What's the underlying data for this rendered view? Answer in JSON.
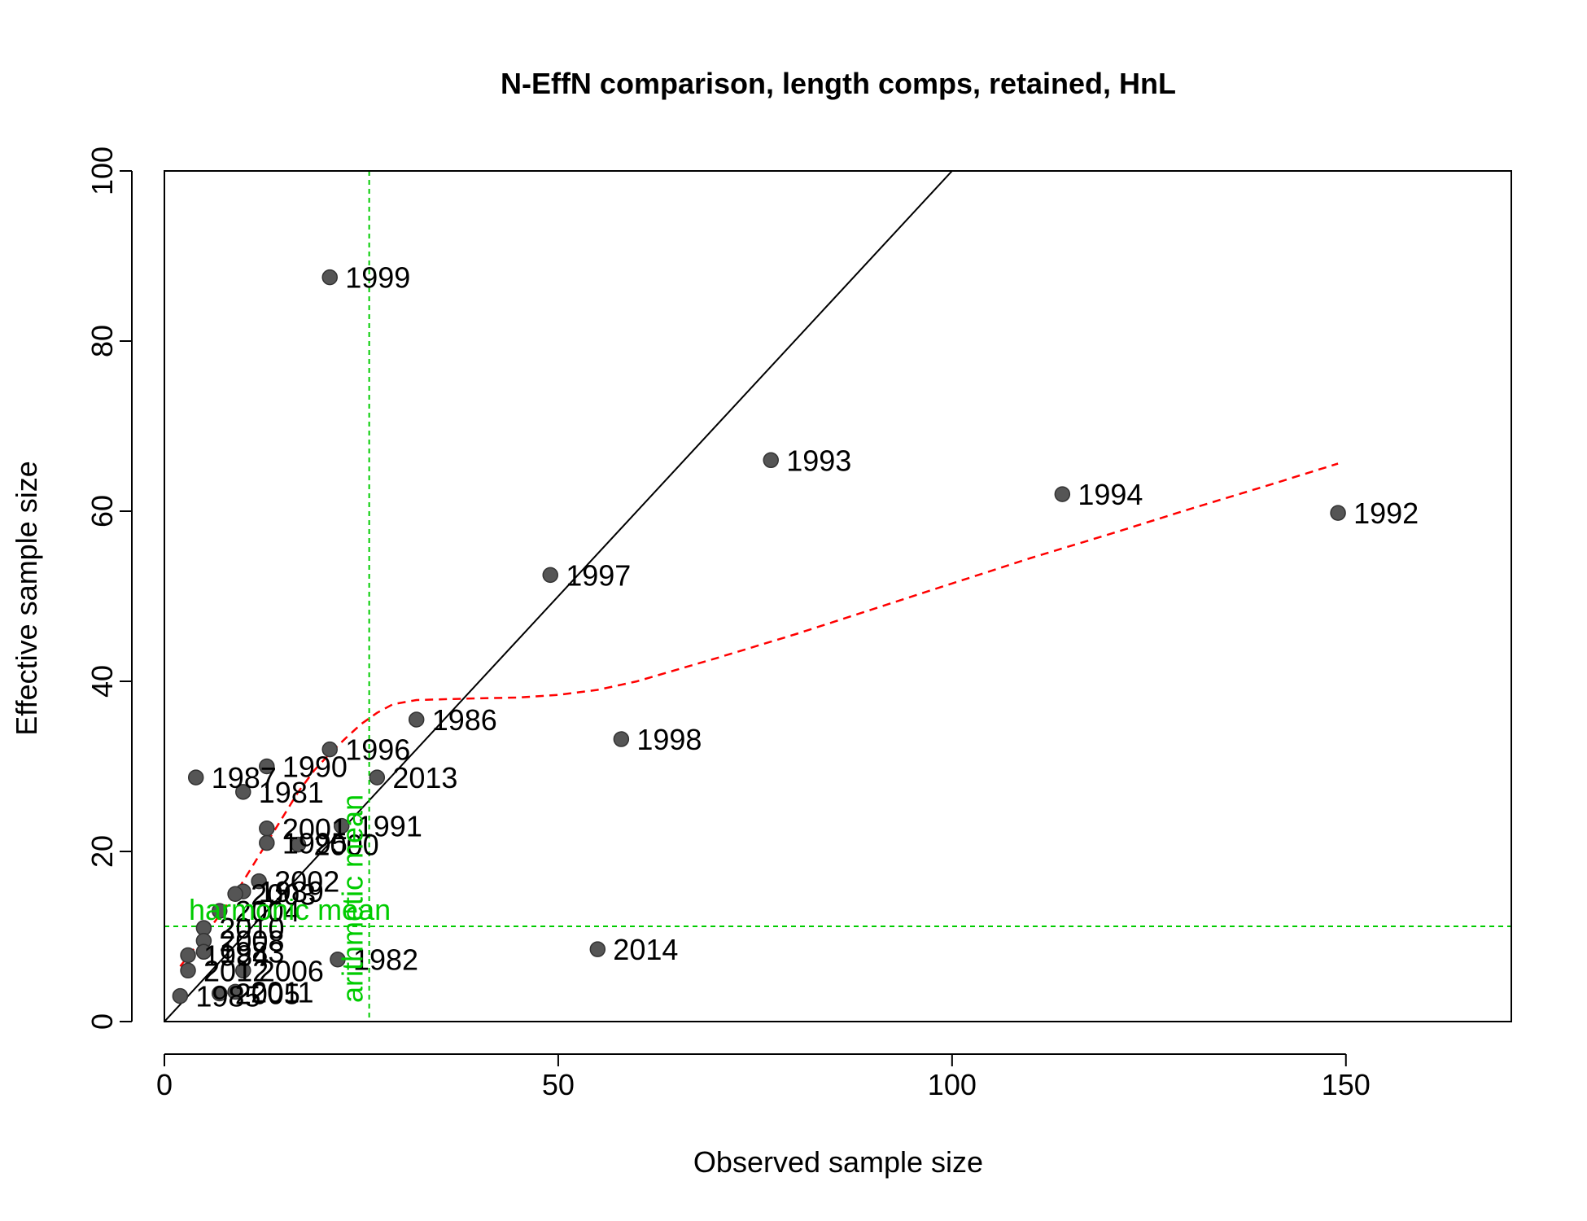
{
  "chart_data": {
    "type": "scatter",
    "title": "N-EffN comparison, length comps, retained, HnL",
    "xlabel": "Observed sample size",
    "ylabel": "Effective sample size",
    "xlim": [
      0,
      171
    ],
    "ylim": [
      0,
      100
    ],
    "xticks": [
      "0",
      "50",
      "100",
      "150"
    ],
    "yticks": [
      "0",
      "20",
      "40",
      "60",
      "80",
      "100"
    ],
    "grid": false,
    "legend": "none",
    "points": [
      {
        "label": "1999",
        "x": 21,
        "y": 87.5
      },
      {
        "label": "1993",
        "x": 77,
        "y": 66
      },
      {
        "label": "1994",
        "x": 114,
        "y": 62
      },
      {
        "label": "1992",
        "x": 149,
        "y": 59.8
      },
      {
        "label": "1997",
        "x": 49,
        "y": 52.5
      },
      {
        "label": "1986",
        "x": 32,
        "y": 35.5
      },
      {
        "label": "1998",
        "x": 58,
        "y": 33.2
      },
      {
        "label": "1996",
        "x": 21,
        "y": 32
      },
      {
        "label": "1990",
        "x": 13,
        "y": 30
      },
      {
        "label": "1987",
        "x": 4,
        "y": 28.7
      },
      {
        "label": "2013",
        "x": 27,
        "y": 28.7
      },
      {
        "label": "1981",
        "x": 10,
        "y": 27
      },
      {
        "label": "2001",
        "x": 13,
        "y": 22.7
      },
      {
        "label": "1991",
        "x": 22.5,
        "y": 23
      },
      {
        "label": "1995",
        "x": 13,
        "y": 21
      },
      {
        "label": "2000",
        "x": 17,
        "y": 20.8
      },
      {
        "label": "2002",
        "x": 12,
        "y": 16.5
      },
      {
        "label": "1989",
        "x": 10,
        "y": 15.3
      },
      {
        "label": "2003",
        "x": 9,
        "y": 15
      },
      {
        "label": "2004",
        "x": 7,
        "y": 13
      },
      {
        "label": "2010",
        "x": 5,
        "y": 11
      },
      {
        "label": "2008",
        "x": 5,
        "y": 9.5
      },
      {
        "label": "1983",
        "x": 5,
        "y": 8.2
      },
      {
        "label": "1984",
        "x": 3,
        "y": 7.8
      },
      {
        "label": "2012",
        "x": 3,
        "y": 6
      },
      {
        "label": "2006",
        "x": 10,
        "y": 6
      },
      {
        "label": "1982",
        "x": 22,
        "y": 7.3
      },
      {
        "label": "2014",
        "x": 55,
        "y": 8.5
      },
      {
        "label": "1985",
        "x": 2,
        "y": 3
      },
      {
        "label": "2005",
        "x": 7,
        "y": 3.3
      },
      {
        "label": "2011",
        "x": 9,
        "y": 3.5
      }
    ],
    "reference_line": {
      "type": "identity",
      "color": "#000000"
    },
    "smoother": {
      "color": "#FF0000",
      "style": "dashed",
      "x": [
        2,
        5,
        7,
        9,
        11,
        13,
        15,
        17,
        19,
        21,
        23,
        25,
        27,
        29,
        32,
        36,
        40,
        45,
        50,
        55,
        60,
        70,
        80,
        90,
        100,
        110,
        120,
        130,
        140,
        149
      ],
      "y": [
        6.5,
        10,
        12.5,
        15,
        18,
        21,
        24,
        27,
        29.5,
        31.5,
        33.3,
        35,
        36.3,
        37.3,
        37.8,
        37.9,
        38,
        38.1,
        38.4,
        39,
        40,
        42.7,
        45.5,
        48.5,
        51.5,
        54.5,
        57.3,
        60.2,
        63,
        65.6
      ]
    },
    "arithmetic_mean": {
      "label": "arithmetic mean",
      "value": 26,
      "color": "#00CC00"
    },
    "harmonic_mean": {
      "label": "harmonic mean",
      "value": 11.2,
      "color": "#00CC00"
    }
  }
}
